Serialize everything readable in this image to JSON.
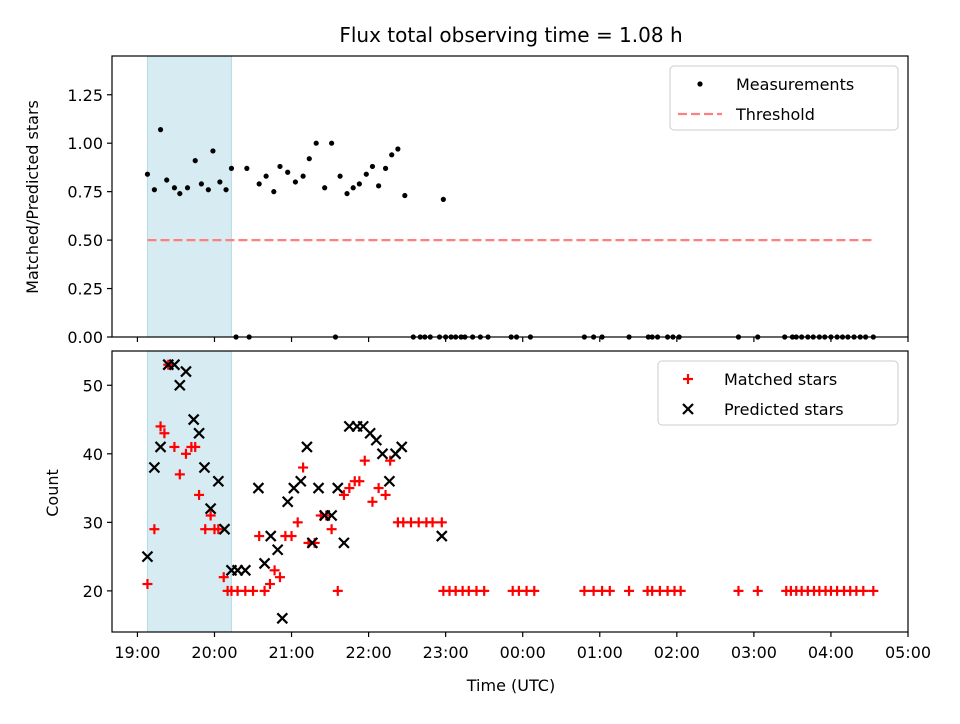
{
  "chart_data": {
    "title": "Flux total observing time = 1.08 h",
    "xlabel": "Time (UTC)",
    "x_tick_labels": [
      "19:00",
      "20:00",
      "21:00",
      "22:00",
      "23:00",
      "00:00",
      "01:00",
      "02:00",
      "03:00",
      "04:00",
      "05:00"
    ],
    "x_range_hours": [
      18.67,
      29.0
    ],
    "highlight_span_hours": [
      19.13,
      20.22
    ],
    "colors": {
      "measurements": "#000000",
      "threshold": "#ff7f7f",
      "matched": "#ff0000",
      "predicted": "#000000",
      "highlight": "#add8e6"
    },
    "panels": [
      {
        "type": "scatter",
        "ylabel": "Matched/Predicted stars",
        "ylim": [
          0,
          1.45
        ],
        "y_ticks": [
          "0.00",
          "0.25",
          "0.50",
          "0.75",
          "1.00",
          "1.25"
        ],
        "legend": {
          "placement": "top-right",
          "entries": [
            "Measurements",
            "Threshold"
          ]
        },
        "threshold": {
          "y": 0.5,
          "x": [
            19.13,
            28.55
          ]
        },
        "series": [
          {
            "name": "Measurements",
            "x": [
              19.13,
              19.22,
              19.3,
              19.38,
              19.48,
              19.55,
              19.65,
              19.75,
              19.83,
              19.92,
              19.98,
              20.07,
              20.15,
              20.22,
              20.42,
              20.58,
              20.67,
              20.77,
              20.85,
              20.95,
              21.05,
              21.15,
              21.23,
              21.32,
              21.43,
              21.52,
              21.63,
              21.72,
              21.8,
              21.88,
              21.97,
              22.05,
              22.13,
              22.22,
              22.3,
              22.38,
              22.47,
              22.97,
              20.28,
              20.45,
              21.57,
              22.58,
              22.67,
              22.73,
              22.8,
              22.92,
              23.0,
              23.07,
              23.13,
              23.2,
              23.25,
              23.35,
              23.45,
              23.55,
              23.85,
              23.92,
              24.1,
              24.8,
              24.92,
              25.03,
              25.38,
              25.63,
              25.68,
              25.75,
              25.88,
              25.95,
              26.03,
              26.8,
              27.05,
              27.4,
              27.5,
              27.55,
              27.62,
              27.7,
              27.77,
              27.85,
              27.92,
              28.0,
              28.08,
              28.15,
              28.22,
              28.3,
              28.38,
              28.45,
              28.55
            ],
            "y": [
              0.84,
              0.76,
              1.07,
              0.81,
              0.77,
              0.74,
              0.77,
              0.91,
              0.79,
              0.76,
              0.96,
              0.8,
              0.76,
              0.87,
              0.87,
              0.79,
              0.83,
              0.75,
              0.88,
              0.85,
              0.8,
              0.83,
              0.92,
              1.0,
              0.77,
              1.0,
              0.83,
              0.74,
              0.77,
              0.79,
              0.84,
              0.88,
              0.78,
              0.87,
              0.94,
              0.97,
              0.73,
              0.71,
              0,
              0,
              0,
              0,
              0,
              0,
              0,
              0,
              0,
              0,
              0,
              0,
              0,
              0,
              0,
              0,
              0,
              0,
              0,
              0,
              0,
              0,
              0,
              0,
              0,
              0,
              0,
              0,
              0,
              0,
              0,
              0,
              0,
              0,
              0,
              0,
              0,
              0,
              0,
              0,
              0,
              0,
              0,
              0,
              0,
              0,
              0
            ]
          }
        ]
      },
      {
        "type": "scatter",
        "ylabel": "Count",
        "ylim": [
          14,
          55
        ],
        "y_ticks": [
          "20",
          "30",
          "40",
          "50"
        ],
        "legend": {
          "placement": "top-right",
          "entries": [
            "Matched stars",
            "Predicted stars"
          ]
        },
        "series": [
          {
            "name": "Matched stars",
            "marker": "plus",
            "x": [
              19.13,
              19.22,
              19.3,
              19.35,
              19.4,
              19.48,
              19.55,
              19.63,
              19.7,
              19.75,
              19.8,
              19.88,
              19.95,
              20.0,
              20.05,
              20.12,
              20.17,
              20.22,
              20.3,
              20.4,
              20.5,
              20.58,
              20.65,
              20.72,
              20.78,
              20.85,
              20.92,
              21.0,
              21.08,
              21.15,
              21.22,
              21.3,
              21.38,
              21.45,
              21.52,
              21.6,
              21.68,
              21.75,
              21.82,
              21.88,
              21.95,
              22.05,
              22.13,
              22.22,
              22.28,
              22.38,
              22.45,
              22.55,
              22.65,
              22.75,
              22.83,
              22.95,
              22.97,
              23.05,
              23.13,
              23.22,
              23.3,
              23.4,
              23.5,
              23.87,
              23.95,
              24.05,
              24.15,
              24.8,
              24.92,
              25.03,
              25.13,
              25.38,
              25.62,
              25.68,
              25.78,
              25.88,
              25.97,
              26.05,
              26.8,
              27.05,
              27.42,
              27.48,
              27.55,
              27.62,
              27.7,
              27.78,
              27.85,
              27.93,
              28.0,
              28.08,
              28.17,
              28.25,
              28.33,
              28.42,
              28.55
            ],
            "y": [
              21,
              29,
              44,
              43,
              53,
              41,
              37,
              40,
              41,
              41,
              34,
              29,
              31,
              29,
              29,
              22,
              20,
              20,
              20,
              20,
              20,
              28,
              20,
              21,
              23,
              22,
              28,
              28,
              30,
              38,
              27,
              27,
              31,
              31,
              29,
              20,
              34,
              35,
              36,
              36,
              39,
              33,
              35,
              34,
              39,
              30,
              30,
              30,
              30,
              30,
              30,
              30,
              20,
              20,
              20,
              20,
              20,
              20,
              20,
              20,
              20,
              20,
              20,
              20,
              20,
              20,
              20,
              20,
              20,
              20,
              20,
              20,
              20,
              20,
              20,
              20,
              20,
              20,
              20,
              20,
              20,
              20,
              20,
              20,
              20,
              20,
              20,
              20,
              20,
              20,
              20
            ]
          },
          {
            "name": "Predicted stars",
            "marker": "x",
            "x": [
              19.13,
              19.22,
              19.3,
              19.4,
              19.48,
              19.55,
              19.63,
              19.73,
              19.8,
              19.87,
              19.95,
              20.05,
              20.13,
              20.22,
              20.3,
              20.4,
              20.57,
              20.65,
              20.73,
              20.82,
              20.88,
              20.95,
              21.03,
              21.12,
              21.2,
              21.27,
              21.35,
              21.43,
              21.52,
              21.6,
              21.68,
              21.75,
              21.85,
              21.93,
              22.02,
              22.1,
              22.18,
              22.27,
              22.35,
              22.43,
              22.95
            ],
            "y": [
              25,
              38,
              41,
              53,
              53,
              50,
              52,
              45,
              43,
              38,
              32,
              36,
              29,
              23,
              23,
              23,
              35,
              24,
              28,
              26,
              16,
              33,
              35,
              36,
              41,
              27,
              35,
              31,
              31,
              35,
              27,
              44,
              44,
              44,
              43,
              42,
              40,
              36,
              40,
              41,
              28
            ]
          }
        ]
      }
    ]
  }
}
